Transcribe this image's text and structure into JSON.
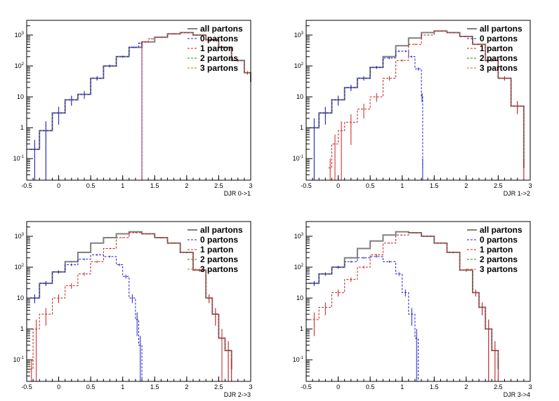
{
  "legend": [
    "all partons",
    "0 partons",
    "1 parton",
    "2 partons",
    "3 partons"
  ],
  "colors": {
    "all": "#808080",
    "p0": "#1f1fc8",
    "p1": "#c81f1f",
    "p2": "#1f8a1f",
    "p3": "#c86a1f"
  },
  "chart_data": [
    {
      "type": "line",
      "xlabel": "DJR 0->1",
      "xlim": [
        -0.5,
        3
      ],
      "ylim": [
        0.02,
        3000
      ],
      "yscale": "log",
      "xticks": [
        "-0.5",
        "0",
        "0.5",
        "1",
        "1.5",
        "2",
        "2.5",
        "3"
      ],
      "yticks": [
        "10-1",
        "1",
        "10",
        "102",
        "103"
      ],
      "legend_position": "top-right",
      "series": [
        {
          "name": "all partons",
          "x": [
            -0.45,
            -0.3,
            -0.1,
            0.1,
            0.3,
            0.5,
            0.7,
            0.9,
            1.1,
            1.3,
            1.5,
            1.7,
            1.9,
            2.1,
            2.3,
            2.5,
            2.7,
            2.9,
            3.0
          ],
          "y": [
            0.2,
            0.8,
            3,
            8,
            12,
            40,
            100,
            200,
            400,
            600,
            850,
            1100,
            1200,
            1000,
            700,
            400,
            150,
            60,
            30
          ]
        },
        {
          "name": "0 partons",
          "x": [
            -0.45,
            -0.3,
            -0.1,
            0.1,
            0.3,
            0.5,
            0.7,
            0.9,
            1.1,
            1.25,
            1.3
          ],
          "y": [
            0.2,
            0.8,
            3,
            8,
            12,
            40,
            100,
            200,
            400,
            550,
            0.02
          ]
        },
        {
          "name": "1 parton",
          "x": [
            1.25,
            1.3,
            1.4,
            1.5,
            1.7,
            1.9,
            2.1,
            2.3,
            2.5,
            2.7,
            2.9,
            3.0
          ],
          "y": [
            0.02,
            600,
            750,
            850,
            1100,
            1200,
            1000,
            700,
            400,
            150,
            60,
            30
          ]
        },
        {
          "name": "2 partons",
          "x": [],
          "y": []
        },
        {
          "name": "3 partons",
          "x": [],
          "y": []
        }
      ]
    },
    {
      "type": "line",
      "xlabel": "DJR 1->2",
      "xlim": [
        -0.5,
        3
      ],
      "ylim": [
        0.02,
        3000
      ],
      "yscale": "log",
      "xticks": [
        "-0.5",
        "0",
        "0.5",
        "1",
        "1.5",
        "2",
        "2.5",
        "3"
      ],
      "yticks": [
        "10-1",
        "1",
        "10",
        "102",
        "103"
      ],
      "legend_position": "top-right",
      "series": [
        {
          "name": "all partons",
          "x": [
            -0.45,
            -0.3,
            -0.1,
            0.1,
            0.3,
            0.5,
            0.7,
            0.9,
            1.1,
            1.3,
            1.5,
            1.7,
            1.9,
            2.1,
            2.3,
            2.5,
            2.7,
            2.9
          ],
          "y": [
            1,
            3,
            8,
            20,
            40,
            90,
            200,
            450,
            800,
            1200,
            1350,
            1200,
            900,
            500,
            150,
            40,
            5,
            0.05
          ]
        },
        {
          "name": "0 partons",
          "x": [
            -0.45,
            -0.3,
            -0.1,
            0.1,
            0.3,
            0.5,
            0.7,
            0.9,
            1.0,
            1.1,
            1.2,
            1.3,
            1.32
          ],
          "y": [
            1,
            3,
            8,
            20,
            40,
            90,
            180,
            300,
            300,
            200,
            80,
            10,
            0.05
          ]
        },
        {
          "name": "1 parton",
          "x": [
            -0.15,
            -0.1,
            0.0,
            0.1,
            0.3,
            0.5,
            0.7,
            0.9,
            1.1,
            1.3,
            1.5,
            1.7,
            1.9,
            2.1,
            2.3,
            2.5,
            2.7,
            2.9
          ],
          "y": [
            0.05,
            0.3,
            0.8,
            1.5,
            4,
            10,
            40,
            150,
            500,
            1000,
            1350,
            1200,
            900,
            500,
            150,
            40,
            5,
            0.05
          ]
        },
        {
          "name": "2 partons",
          "x": [],
          "y": []
        },
        {
          "name": "3 partons",
          "x": [],
          "y": []
        }
      ]
    },
    {
      "type": "line",
      "xlabel": "DJR 2->3",
      "xlim": [
        -0.5,
        3
      ],
      "ylim": [
        0.02,
        3000
      ],
      "yscale": "log",
      "xticks": [
        "-0.5",
        "0",
        "0.5",
        "1",
        "1.5",
        "2",
        "2.5",
        "3"
      ],
      "yticks": [
        "10-1",
        "1",
        "10",
        "102",
        "103"
      ],
      "legend_position": "top-right",
      "series": [
        {
          "name": "all partons",
          "x": [
            -0.45,
            -0.3,
            -0.1,
            0.1,
            0.3,
            0.5,
            0.7,
            0.9,
            1.1,
            1.3,
            1.5,
            1.7,
            1.9,
            2.1,
            2.3,
            2.4,
            2.5,
            2.6,
            2.7
          ],
          "y": [
            10,
            30,
            70,
            150,
            300,
            600,
            900,
            1200,
            1400,
            1200,
            900,
            600,
            300,
            80,
            10,
            3,
            0.5,
            0.2,
            0.05
          ]
        },
        {
          "name": "0 partons",
          "x": [
            -0.45,
            -0.3,
            -0.1,
            0.1,
            0.3,
            0.5,
            0.7,
            0.9,
            1.0,
            1.1,
            1.2,
            1.25,
            1.3
          ],
          "y": [
            10,
            30,
            70,
            120,
            180,
            250,
            220,
            120,
            50,
            10,
            2,
            0.3,
            0.02
          ]
        },
        {
          "name": "1 parton",
          "x": [
            -0.45,
            -0.4,
            -0.3,
            -0.1,
            0.1,
            0.3,
            0.5,
            0.7,
            0.9,
            1.1,
            1.3,
            1.5,
            1.7,
            1.9,
            2.1,
            2.3,
            2.4,
            2.5,
            2.6,
            2.7
          ],
          "y": [
            0.05,
            1,
            3,
            10,
            25,
            60,
            150,
            400,
            900,
            1300,
            1200,
            900,
            600,
            300,
            80,
            10,
            3,
            0.5,
            0.2,
            0.05
          ]
        },
        {
          "name": "2 partons",
          "x": [],
          "y": []
        },
        {
          "name": "3 partons",
          "x": [],
          "y": []
        }
      ]
    },
    {
      "type": "line",
      "xlabel": "DJR 3->4",
      "xlim": [
        -0.5,
        3
      ],
      "ylim": [
        0.02,
        3000
      ],
      "yscale": "log",
      "xticks": [
        "-0.5",
        "0",
        "0.5",
        "1",
        "1.5",
        "2",
        "2.5",
        "3"
      ],
      "yticks": [
        "10-1",
        "1",
        "10",
        "102",
        "103"
      ],
      "legend_position": "top-right",
      "series": [
        {
          "name": "all partons",
          "x": [
            -0.45,
            -0.3,
            -0.1,
            0.1,
            0.3,
            0.5,
            0.7,
            0.9,
            1.1,
            1.3,
            1.5,
            1.7,
            1.9,
            2.1,
            2.2,
            2.3,
            2.4,
            2.5
          ],
          "y": [
            30,
            60,
            100,
            200,
            400,
            700,
            1100,
            1400,
            1300,
            1000,
            600,
            300,
            80,
            15,
            5,
            1,
            0.2,
            0.05
          ]
        },
        {
          "name": "0 partons",
          "x": [
            -0.45,
            -0.3,
            -0.1,
            0.1,
            0.3,
            0.5,
            0.7,
            0.9,
            1.0,
            1.1,
            1.2,
            1.25
          ],
          "y": [
            30,
            60,
            100,
            150,
            200,
            220,
            150,
            60,
            15,
            3,
            0.5,
            0.02
          ]
        },
        {
          "name": "1 parton",
          "x": [
            -0.45,
            -0.3,
            -0.1,
            0.1,
            0.3,
            0.5,
            0.7,
            0.9,
            1.1,
            1.3,
            1.5,
            1.7,
            1.9,
            2.1,
            2.2,
            2.3,
            2.4,
            2.5
          ],
          "y": [
            2,
            5,
            15,
            40,
            100,
            250,
            600,
            1100,
            1300,
            1000,
            600,
            300,
            80,
            15,
            5,
            1,
            0.2,
            0.05
          ]
        },
        {
          "name": "2 partons",
          "x": [],
          "y": []
        },
        {
          "name": "3 partons",
          "x": [],
          "y": []
        }
      ]
    }
  ]
}
